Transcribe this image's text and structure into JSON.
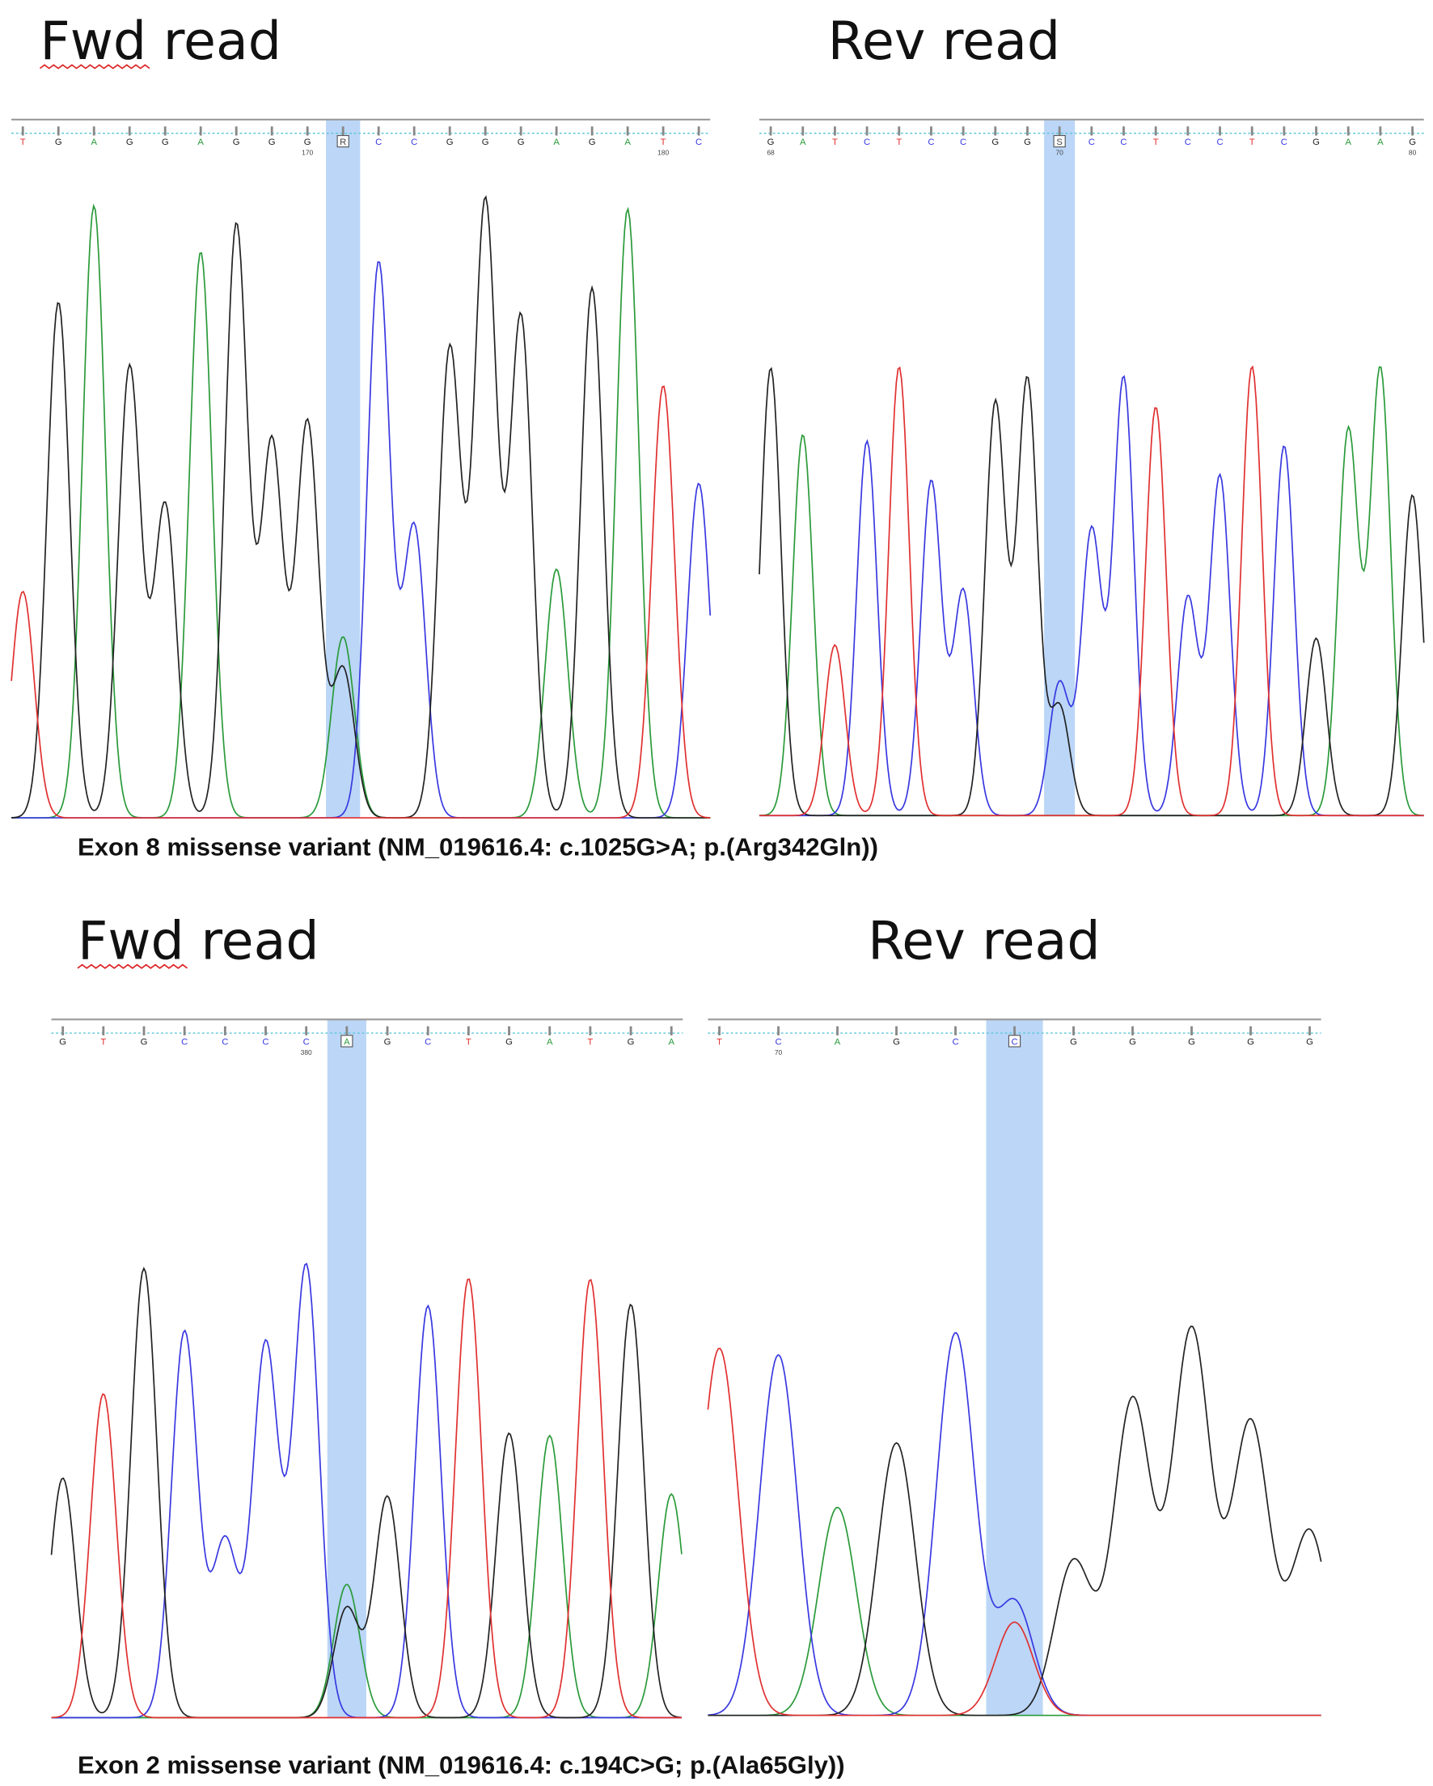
{
  "panels": [
    {
      "title": "Fwd read",
      "bases": [
        "T",
        "G",
        "A",
        "G",
        "G",
        "A",
        "G",
        "G",
        "G",
        "R",
        "C",
        "C",
        "G",
        "G",
        "G",
        "A",
        "G",
        "A",
        "T",
        "C"
      ],
      "positions": [
        "170",
        "180"
      ]
    },
    {
      "title": "Rev read",
      "bases": [
        "G",
        "A",
        "T",
        "C",
        "T",
        "C",
        "C",
        "G",
        "G",
        "S",
        "C",
        "C",
        "T",
        "C",
        "C",
        "T",
        "C",
        "G",
        "A",
        "A",
        "G"
      ],
      "positions": [
        "68",
        "70",
        "80"
      ]
    },
    {
      "title": "Fwd read",
      "bases": [
        "G",
        "T",
        "G",
        "C",
        "C",
        "C",
        "C",
        "A",
        "G",
        "C",
        "T",
        "G",
        "A",
        "T",
        "G",
        "A"
      ],
      "positions": [
        "380"
      ]
    },
    {
      "title": "Rev read",
      "bases": [
        "T",
        "C",
        "A",
        "G",
        "C",
        "C",
        "G",
        "G",
        "G",
        "G",
        "G"
      ],
      "positions": [
        "70"
      ]
    }
  ],
  "captions": [
    "Exon 8 missense variant (NM_019616.4: c.1025G>A; p.(Arg342Gln))",
    "Exon 2 missense variant (NM_019616.4: c.194C>G; p.(Ala65Gly))"
  ]
}
